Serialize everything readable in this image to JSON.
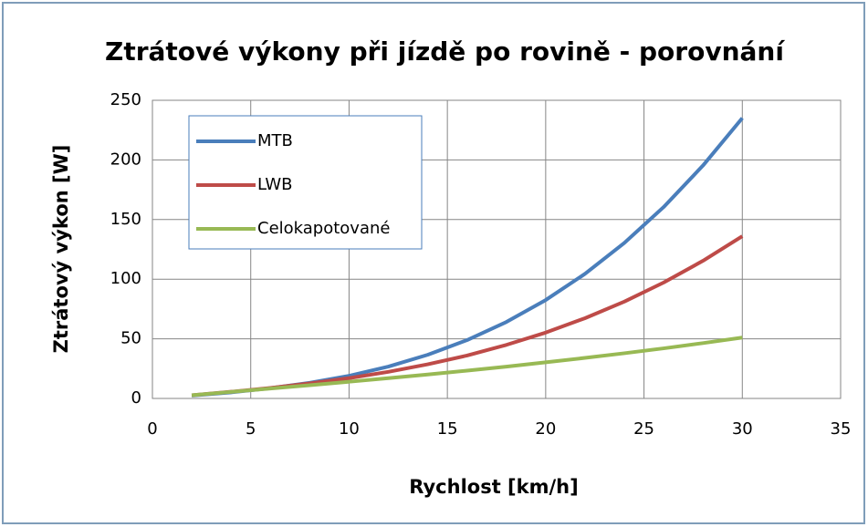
{
  "chart_data": {
    "type": "line",
    "title": "Ztrátové výkony při jízdě po rovině - porovnání",
    "xlabel": "Rychlost [km/h]",
    "ylabel": "Ztrátový výkon [W]",
    "x": [
      2,
      4,
      6,
      8,
      10,
      12,
      14,
      16,
      18,
      20,
      22,
      24,
      26,
      28,
      30
    ],
    "series": [
      {
        "name": "MTB",
        "color": "#4a7ebb",
        "values": [
          2.4,
          5.1,
          8.6,
          13.1,
          19.0,
          26.7,
          36.6,
          48.9,
          64.1,
          82.5,
          104.5,
          130.4,
          160.5,
          195.3,
          235.1
        ]
      },
      {
        "name": "LWB",
        "color": "#be4b48",
        "values": [
          2.7,
          5.6,
          8.8,
          12.6,
          17.0,
          22.3,
          28.6,
          36.0,
          44.9,
          55.2,
          67.3,
          81.2,
          97.2,
          115.4,
          136.0
        ]
      },
      {
        "name": "Celokapotované",
        "color": "#98b954",
        "values": [
          2.7,
          5.5,
          8.3,
          11.1,
          14.0,
          17.0,
          20.1,
          23.3,
          26.7,
          30.3,
          34.0,
          37.9,
          42.0,
          46.4,
          51.0
        ]
      }
    ],
    "xlim": [
      0,
      35
    ],
    "xticks": [
      0,
      5,
      10,
      15,
      20,
      25,
      30,
      35
    ],
    "ylim": [
      0,
      250
    ],
    "yticks": [
      0,
      50,
      100,
      150,
      200,
      250
    ],
    "grid": true,
    "legend": "upper left"
  }
}
